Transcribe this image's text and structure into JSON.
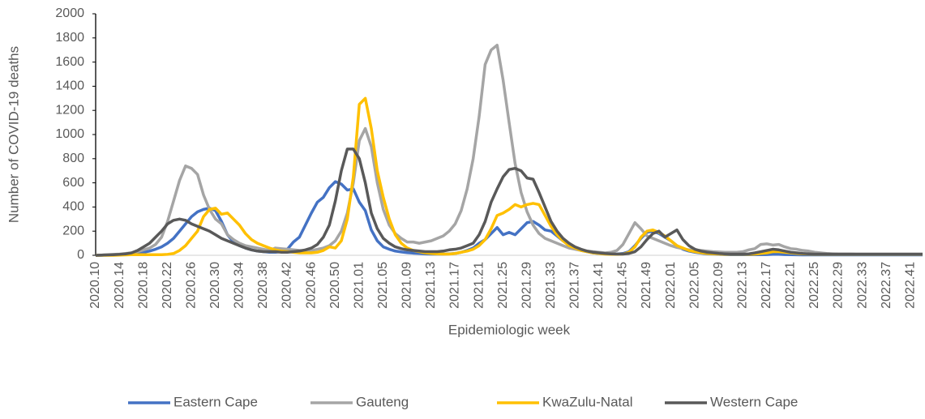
{
  "chart_data": {
    "type": "line",
    "x_label": "Epidemiologic week",
    "y_label": "Number of COVID-19 deaths",
    "ylim": [
      0,
      2000
    ],
    "yticks": [
      0,
      200,
      400,
      600,
      800,
      1000,
      1200,
      1400,
      1600,
      1800,
      2000
    ],
    "categories": [
      "2020.10",
      null,
      null,
      null,
      "2020.14",
      null,
      null,
      null,
      "2020.18",
      null,
      null,
      null,
      "2020.22",
      null,
      null,
      null,
      "2020.26",
      null,
      null,
      null,
      "2020.30",
      null,
      null,
      null,
      "2020.34",
      null,
      null,
      null,
      "2020.38",
      null,
      null,
      null,
      "2020.42",
      null,
      null,
      null,
      "2020.46",
      null,
      null,
      null,
      "2020.50",
      null,
      null,
      null,
      "2021.01",
      null,
      null,
      null,
      "2021.05",
      null,
      null,
      null,
      "2021.09",
      null,
      null,
      null,
      "2021.13",
      null,
      null,
      null,
      "2021.17",
      null,
      null,
      null,
      "2021.21",
      null,
      null,
      null,
      "2021.25",
      null,
      null,
      null,
      "2021.29",
      null,
      null,
      null,
      "2021.33",
      null,
      null,
      null,
      "2021.37",
      null,
      null,
      null,
      "2021.41",
      null,
      null,
      null,
      "2021.45",
      null,
      null,
      null,
      "2021.49",
      null,
      null,
      null,
      "2022.01",
      null,
      null,
      null,
      "2022.05",
      null,
      null,
      null,
      "2022.09",
      null,
      null,
      null,
      "2022.13",
      null,
      null,
      null,
      "2022.17",
      null,
      null,
      null,
      "2022.21",
      null,
      null,
      null,
      "2022.25",
      null,
      null,
      null,
      "2022.29",
      null,
      null,
      null,
      "2022.33",
      null,
      null,
      null,
      "2022.37",
      null,
      null,
      null,
      "2022.41",
      null,
      null
    ],
    "series": [
      {
        "name": "Eastern Cape",
        "color": "#4472c4",
        "values": [
          0,
          0,
          2,
          3,
          5,
          8,
          12,
          18,
          25,
          35,
          50,
          70,
          100,
          140,
          200,
          260,
          320,
          360,
          380,
          390,
          370,
          280,
          170,
          110,
          80,
          60,
          45,
          35,
          30,
          25,
          25,
          30,
          50,
          110,
          150,
          250,
          350,
          440,
          480,
          560,
          610,
          590,
          540,
          550,
          440,
          370,
          210,
          120,
          70,
          50,
          35,
          28,
          22,
          18,
          15,
          12,
          10,
          10,
          10,
          12,
          15,
          25,
          40,
          60,
          100,
          130,
          180,
          230,
          170,
          190,
          170,
          220,
          270,
          280,
          250,
          210,
          200,
          160,
          120,
          90,
          60,
          40,
          30,
          20,
          15,
          12,
          10,
          10,
          15,
          30,
          80,
          140,
          190,
          200,
          180,
          150,
          120,
          80,
          50,
          35,
          25,
          18,
          12,
          10,
          8,
          6,
          5,
          5,
          5,
          5,
          5,
          5,
          6,
          8,
          8,
          6,
          5,
          4,
          3,
          3,
          3,
          3,
          3,
          3,
          3,
          3,
          3,
          3,
          3,
          3,
          3,
          3,
          3,
          3,
          3,
          3,
          3,
          3,
          3
        ]
      },
      {
        "name": "Gauteng",
        "color": "#a5a5a5",
        "values": [
          0,
          2,
          5,
          8,
          10,
          15,
          20,
          30,
          45,
          60,
          90,
          150,
          280,
          450,
          620,
          740,
          720,
          670,
          500,
          380,
          300,
          260,
          170,
          130,
          100,
          80,
          70,
          60,
          50,
          40,
          60,
          55,
          50,
          45,
          40,
          40,
          40,
          50,
          60,
          80,
          120,
          200,
          350,
          600,
          950,
          1050,
          900,
          600,
          380,
          250,
          180,
          140,
          110,
          110,
          100,
          110,
          120,
          140,
          160,
          200,
          260,
          370,
          550,
          800,
          1150,
          1580,
          1700,
          1740,
          1450,
          1100,
          760,
          520,
          360,
          250,
          180,
          140,
          120,
          100,
          80,
          60,
          50,
          40,
          35,
          30,
          25,
          20,
          25,
          40,
          90,
          180,
          270,
          220,
          160,
          140,
          120,
          100,
          80,
          65,
          55,
          45,
          45,
          40,
          35,
          30,
          28,
          25,
          25,
          25,
          30,
          45,
          55,
          90,
          95,
          85,
          90,
          70,
          55,
          50,
          40,
          35,
          25,
          20,
          15,
          12,
          10,
          10,
          10,
          8,
          8,
          8,
          8,
          8,
          8,
          8,
          8,
          8,
          8,
          8,
          8
        ]
      },
      {
        "name": "KwaZulu-Natal",
        "color": "#ffc000",
        "values": [
          0,
          0,
          0,
          0,
          2,
          3,
          5,
          5,
          5,
          5,
          5,
          5,
          8,
          15,
          40,
          80,
          140,
          200,
          320,
          380,
          390,
          340,
          350,
          300,
          250,
          180,
          130,
          100,
          80,
          60,
          45,
          35,
          30,
          25,
          20,
          20,
          20,
          25,
          40,
          70,
          60,
          120,
          300,
          650,
          1250,
          1300,
          1050,
          700,
          480,
          300,
          170,
          100,
          60,
          40,
          30,
          20,
          15,
          12,
          10,
          10,
          15,
          25,
          35,
          50,
          80,
          130,
          220,
          330,
          350,
          380,
          420,
          400,
          420,
          430,
          420,
          330,
          240,
          170,
          120,
          80,
          60,
          40,
          30,
          20,
          15,
          10,
          8,
          8,
          10,
          25,
          70,
          150,
          200,
          210,
          190,
          160,
          120,
          80,
          60,
          40,
          30,
          22,
          15,
          12,
          10,
          8,
          8,
          8,
          8,
          8,
          10,
          15,
          20,
          30,
          30,
          25,
          20,
          15,
          12,
          10,
          8,
          8,
          8,
          8,
          8,
          8,
          8,
          8,
          8,
          8,
          8,
          8,
          8,
          8,
          8,
          8,
          8,
          8,
          8
        ]
      },
      {
        "name": "Western Cape",
        "color": "#595959",
        "values": [
          0,
          2,
          3,
          5,
          8,
          12,
          20,
          40,
          70,
          100,
          150,
          200,
          260,
          290,
          300,
          290,
          260,
          240,
          220,
          200,
          170,
          140,
          120,
          100,
          80,
          60,
          45,
          35,
          30,
          30,
          30,
          25,
          25,
          30,
          35,
          45,
          60,
          90,
          150,
          250,
          450,
          700,
          880,
          880,
          800,
          600,
          350,
          220,
          140,
          100,
          70,
          55,
          45,
          40,
          35,
          30,
          30,
          30,
          35,
          45,
          50,
          60,
          80,
          100,
          170,
          280,
          440,
          550,
          650,
          710,
          720,
          700,
          640,
          630,
          520,
          400,
          280,
          200,
          140,
          100,
          70,
          50,
          35,
          25,
          20,
          15,
          12,
          10,
          10,
          15,
          30,
          70,
          130,
          180,
          200,
          150,
          180,
          210,
          130,
          80,
          50,
          35,
          25,
          20,
          15,
          12,
          10,
          10,
          10,
          12,
          20,
          30,
          40,
          50,
          45,
          35,
          25,
          20,
          15,
          12,
          10,
          10,
          10,
          10,
          10,
          10,
          10,
          10,
          10,
          10,
          10,
          10,
          10,
          10,
          10,
          10,
          10,
          10,
          10
        ]
      }
    ]
  }
}
